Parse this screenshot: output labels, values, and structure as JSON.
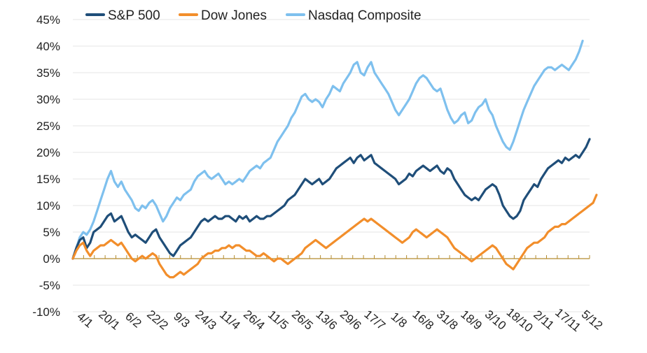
{
  "chart_data": {
    "type": "line",
    "title": "",
    "xlabel": "",
    "ylabel": "",
    "ylim": [
      -10,
      45
    ],
    "y_ticks": [
      -10,
      -5,
      0,
      5,
      10,
      15,
      20,
      25,
      30,
      35,
      40,
      45
    ],
    "y_tick_labels": [
      "-10%",
      "-5%",
      "0%",
      "5%",
      "10%",
      "15%",
      "20%",
      "25%",
      "30%",
      "35%",
      "40%",
      "45%"
    ],
    "x_tick_labels": [
      "4/1",
      "20/1",
      "6/2",
      "22/2",
      "9/3",
      "24/3",
      "11/4",
      "26/4",
      "11/5",
      "26/5",
      "13/6",
      "29/6",
      "17/7",
      "1/8",
      "16/8",
      "31/8",
      "18/9",
      "3/10",
      "18/10",
      "2/11",
      "17/11",
      "5/12"
    ],
    "grid": true,
    "legend_position": "top",
    "series": [
      {
        "name": "S&P 500",
        "color": "#1f4e79",
        "values": [
          0,
          2,
          3.5,
          4,
          2,
          3,
          5,
          5.5,
          6,
          7,
          8,
          8.5,
          7,
          7.5,
          8,
          6.5,
          5,
          4,
          4.5,
          4,
          3.5,
          3,
          4,
          5,
          5.5,
          4,
          3,
          2,
          1,
          0.5,
          1.5,
          2.5,
          3,
          3.5,
          4,
          5,
          6,
          7,
          7.5,
          7,
          7.5,
          8,
          7.5,
          7.5,
          8,
          8,
          7.5,
          7,
          8,
          7.5,
          8,
          7,
          7.5,
          8,
          7.5,
          7.5,
          8,
          8,
          8.5,
          9,
          9.5,
          10,
          11,
          11.5,
          12,
          13,
          14,
          15,
          14.5,
          14,
          14.5,
          15,
          14,
          14.5,
          15,
          16,
          17,
          17.5,
          18,
          18.5,
          19,
          18,
          19,
          19.5,
          18.5,
          19,
          19.5,
          18,
          17.5,
          17,
          16.5,
          16,
          15.5,
          15,
          14,
          14.5,
          15,
          16,
          15.5,
          16.5,
          17,
          17.5,
          17,
          16.5,
          17,
          17.5,
          16.5,
          16,
          17,
          16.5,
          15,
          14,
          13,
          12,
          11.5,
          11,
          11.5,
          11,
          12,
          13,
          13.5,
          14,
          13.5,
          12,
          10,
          9,
          8,
          7.5,
          8,
          9,
          11,
          12,
          13,
          14,
          13.5,
          15,
          16,
          17,
          17.5,
          18,
          18.5,
          18,
          19,
          18.5,
          19,
          19.5,
          19,
          20,
          21,
          22.5
        ]
      },
      {
        "name": "Dow Jones",
        "color": "#f28e2b",
        "values": [
          0,
          1.5,
          2.5,
          3,
          1.5,
          0.5,
          1.5,
          2,
          2.5,
          2.5,
          3,
          3.5,
          3,
          2.5,
          3,
          2,
          1,
          0,
          -0.5,
          0,
          0.5,
          0,
          0.5,
          1,
          0.5,
          -1,
          -2,
          -3,
          -3.5,
          -3.5,
          -3,
          -2.5,
          -3,
          -2.5,
          -2,
          -1.5,
          -1,
          0,
          0.5,
          1,
          1,
          1.5,
          1.5,
          2,
          2,
          2.5,
          2,
          2.5,
          2.5,
          2,
          1.5,
          1.5,
          1,
          0.5,
          0.5,
          1,
          0.5,
          0,
          -0.5,
          0,
          0,
          -0.5,
          -1,
          -0.5,
          0,
          0.5,
          1,
          2,
          2.5,
          3,
          3.5,
          3,
          2.5,
          2,
          2.5,
          3,
          3.5,
          4,
          4.5,
          5,
          5.5,
          6,
          6.5,
          7,
          7.5,
          7,
          7.5,
          7,
          6.5,
          6,
          5.5,
          5,
          4.5,
          4,
          3.5,
          3,
          3.5,
          4,
          5,
          5.5,
          5,
          4.5,
          4,
          4.5,
          5,
          5.5,
          5,
          4.5,
          4,
          3,
          2,
          1.5,
          1,
          0.5,
          0,
          -0.5,
          0,
          0.5,
          1,
          1.5,
          2,
          2.5,
          2,
          1,
          0,
          -1,
          -1.5,
          -2,
          -1,
          0,
          1,
          2,
          2.5,
          3,
          3,
          3.5,
          4,
          5,
          5.5,
          6,
          6,
          6.5,
          6.5,
          7,
          7.5,
          8,
          8.5,
          9,
          9.5,
          10,
          10.5,
          12
        ]
      },
      {
        "name": "Nasdaq Composite",
        "color": "#7ec0ee",
        "values": [
          0,
          2,
          4,
          5,
          4.5,
          5.5,
          7,
          9,
          11,
          13,
          15,
          16.5,
          14.5,
          13.5,
          14.5,
          13,
          12,
          11,
          9.5,
          9,
          10,
          9.5,
          10.5,
          11,
          10,
          8.5,
          7,
          8,
          9.5,
          10.5,
          11.5,
          11,
          12,
          12.5,
          13,
          14.5,
          15.5,
          16,
          16.5,
          15.5,
          15,
          15.5,
          16,
          15,
          14,
          14.5,
          14,
          14.5,
          15,
          14.5,
          15.5,
          16.5,
          17,
          17.5,
          17,
          18,
          18.5,
          19,
          20.5,
          22,
          23,
          24,
          25,
          26.5,
          27.5,
          29,
          30.5,
          31,
          30,
          29.5,
          30,
          29.5,
          28.5,
          30,
          31,
          32.5,
          32,
          31.5,
          33,
          34,
          35,
          36.5,
          37,
          35,
          34.5,
          36,
          37,
          35,
          34,
          33,
          32,
          31,
          29.5,
          28,
          27,
          28,
          29,
          30,
          31.5,
          33,
          34,
          34.5,
          34,
          33,
          32,
          31.5,
          32,
          30,
          28,
          26.5,
          25.5,
          26,
          27,
          27.5,
          25.5,
          26,
          27.5,
          28.5,
          29,
          30,
          28,
          27,
          25,
          23.5,
          22,
          21,
          20.5,
          22,
          24,
          26,
          28,
          29.5,
          31,
          32.5,
          33.5,
          34.5,
          35.5,
          36,
          36,
          35.5,
          36,
          36.5,
          36,
          35.5,
          36.5,
          37.5,
          39,
          41
        ]
      }
    ]
  }
}
